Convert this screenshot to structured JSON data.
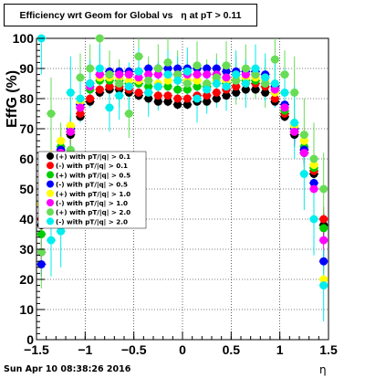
{
  "title": "Efficiency wrt Geom for Global vs   η at pT > 0.11",
  "footer_timestamp": "Sun Apr 10 08:38:26 2016",
  "chart_data": {
    "type": "scatter",
    "title": "Efficiency wrt Geom for Global vs   η at pT > 0.11",
    "xlabel": "η",
    "ylabel": "EffG (%)",
    "xlim": [
      -1.5,
      1.5
    ],
    "ylim": [
      0,
      100
    ],
    "x_ticks": [
      "−1.5",
      "−1",
      "−0.5",
      "0",
      "0.5",
      "1",
      "1.5"
    ],
    "y_ticks": [
      "0",
      "10",
      "20",
      "30",
      "40",
      "50",
      "60",
      "70",
      "80",
      "90",
      "100"
    ],
    "grid": true,
    "legend_position": "middle-left",
    "series": [
      {
        "name": "(+) with pT/|q| > 0.1",
        "color": "#000000",
        "x": [
          -1.45,
          -1.35,
          -1.25,
          -1.15,
          -1.05,
          -0.95,
          -0.85,
          -0.75,
          -0.65,
          -0.55,
          -0.45,
          -0.35,
          -0.25,
          -0.15,
          -0.05,
          0.05,
          0.15,
          0.25,
          0.35,
          0.45,
          0.55,
          0.65,
          0.75,
          0.85,
          0.95,
          1.05,
          1.15,
          1.25,
          1.35,
          1.45
        ],
        "y": [
          38,
          55,
          62,
          68,
          74,
          79,
          82,
          83,
          83,
          82,
          81,
          80,
          79,
          79,
          78,
          78,
          79,
          79,
          80,
          81,
          82,
          83,
          83,
          82,
          79,
          74,
          68,
          62,
          55,
          38
        ]
      },
      {
        "name": "(-) with pT/|q| > 0.1",
        "color": "#ff0000",
        "x": [
          -1.45,
          -1.35,
          -1.25,
          -1.15,
          -1.05,
          -0.95,
          -0.85,
          -0.75,
          -0.65,
          -0.55,
          -0.45,
          -0.35,
          -0.25,
          -0.15,
          -0.05,
          0.05,
          0.15,
          0.25,
          0.35,
          0.45,
          0.55,
          0.65,
          0.75,
          0.85,
          0.95,
          1.05,
          1.15,
          1.25,
          1.35,
          1.45
        ],
        "y": [
          40,
          56,
          63,
          69,
          75,
          80,
          83,
          84,
          84,
          83,
          82,
          82,
          81,
          81,
          80,
          80,
          81,
          81,
          82,
          83,
          84,
          85,
          85,
          84,
          80,
          75,
          69,
          63,
          56,
          40
        ]
      },
      {
        "name": "(+) with pT/|q| > 0.5",
        "color": "#00cc00",
        "x": [
          -1.45,
          -1.35,
          -1.25,
          -1.15,
          -1.05,
          -0.95,
          -0.85,
          -0.75,
          -0.65,
          -0.55,
          -0.45,
          -0.35,
          -0.25,
          -0.15,
          -0.05,
          0.05,
          0.15,
          0.25,
          0.35,
          0.45,
          0.55,
          0.65,
          0.75,
          0.85,
          0.95,
          1.05,
          1.15,
          1.25,
          1.35,
          1.45
        ],
        "y": [
          35,
          57,
          64,
          70,
          77,
          83,
          86,
          86,
          86,
          85,
          85,
          84,
          84,
          84,
          83,
          83,
          84,
          84,
          85,
          85,
          86,
          86,
          86,
          85,
          82,
          76,
          70,
          64,
          57,
          37
        ]
      },
      {
        "name": "(-) with pT/|q| > 0.5",
        "color": "#0000ff",
        "x": [
          -1.45,
          -1.35,
          -1.25,
          -1.15,
          -1.05,
          -0.95,
          -0.85,
          -0.75,
          -0.65,
          -0.55,
          -0.45,
          -0.35,
          -0.25,
          -0.15,
          -0.05,
          0.05,
          0.15,
          0.25,
          0.35,
          0.45,
          0.55,
          0.65,
          0.75,
          0.85,
          0.95,
          1.05,
          1.15,
          1.25,
          1.35,
          1.45
        ],
        "y": [
          25,
          52,
          63,
          70,
          78,
          85,
          88,
          89,
          89,
          89,
          89,
          90,
          90,
          90,
          90,
          90,
          90,
          90,
          90,
          89,
          89,
          89,
          89,
          88,
          84,
          78,
          70,
          63,
          52,
          26
        ]
      },
      {
        "name": "(+) with pT/|q| > 1.0",
        "color": "#ffff00",
        "x": [
          -1.45,
          -1.35,
          -1.25,
          -1.15,
          -1.05,
          -0.95,
          -0.85,
          -0.75,
          -0.65,
          -0.55,
          -0.45,
          -0.35,
          -0.25,
          -0.15,
          -0.05,
          0.05,
          0.15,
          0.25,
          0.35,
          0.45,
          0.55,
          0.65,
          0.75,
          0.85,
          0.95,
          1.05,
          1.15,
          1.25,
          1.35,
          1.45
        ],
        "y": [
          45,
          59,
          66,
          71,
          79,
          84,
          87,
          87,
          87,
          86,
          86,
          86,
          85,
          86,
          86,
          86,
          86,
          85,
          86,
          86,
          87,
          87,
          87,
          86,
          82,
          77,
          71,
          66,
          58,
          20
        ]
      },
      {
        "name": "(-) with pT/|q| > 1.0",
        "color": "#ff00ff",
        "x": [
          -1.45,
          -1.35,
          -1.25,
          -1.15,
          -1.05,
          -0.95,
          -0.85,
          -0.75,
          -0.65,
          -0.55,
          -0.45,
          -0.35,
          -0.25,
          -0.15,
          -0.05,
          0.05,
          0.15,
          0.25,
          0.35,
          0.45,
          0.55,
          0.65,
          0.75,
          0.85,
          0.95,
          1.05,
          1.15,
          1.25,
          1.35,
          1.45
        ],
        "y": [
          29,
          52,
          62,
          69,
          77,
          84,
          88,
          88,
          88,
          88,
          87,
          88,
          88,
          88,
          88,
          88,
          88,
          88,
          88,
          87,
          88,
          88,
          88,
          87,
          83,
          77,
          69,
          62,
          50,
          33
        ]
      },
      {
        "name": "(+) with pT/|q| > 2.0",
        "color": "#66dd55",
        "x": [
          -1.45,
          -1.35,
          -1.25,
          -1.15,
          -1.05,
          -0.95,
          -0.85,
          -0.75,
          -0.65,
          -0.55,
          -0.45,
          -0.35,
          -0.25,
          -0.15,
          -0.05,
          0.05,
          0.15,
          0.25,
          0.35,
          0.45,
          0.55,
          0.65,
          0.75,
          0.85,
          0.95,
          1.05,
          1.15,
          1.25,
          1.35,
          1.45
        ],
        "y": [
          29,
          75,
          60,
          63,
          87,
          90,
          100,
          88,
          85,
          75,
          94,
          86,
          90,
          92,
          88,
          85,
          91,
          85,
          87,
          91,
          86,
          90,
          88,
          85,
          93,
          88,
          82,
          68,
          60,
          50
        ]
      },
      {
        "name": "(-) with pT/|q| > 2.0",
        "color": "#00eeee",
        "x": [
          -1.45,
          -1.35,
          -1.25,
          -1.15,
          -1.05,
          -0.95,
          -0.85,
          -0.75,
          -0.65,
          -0.55,
          -0.45,
          -0.35,
          -0.25,
          -0.15,
          -0.05,
          0.05,
          0.15,
          0.25,
          0.35,
          0.45,
          0.55,
          0.65,
          0.75,
          0.85,
          0.95,
          1.05,
          1.15,
          1.25,
          1.35,
          1.45
        ],
        "y": [
          100,
          33,
          36,
          82,
          80,
          85,
          90,
          77,
          81,
          84,
          89,
          82,
          84,
          88,
          86,
          89,
          80,
          83,
          85,
          84,
          88,
          85,
          90,
          87,
          85,
          82,
          72,
          55,
          40,
          18
        ]
      }
    ]
  }
}
